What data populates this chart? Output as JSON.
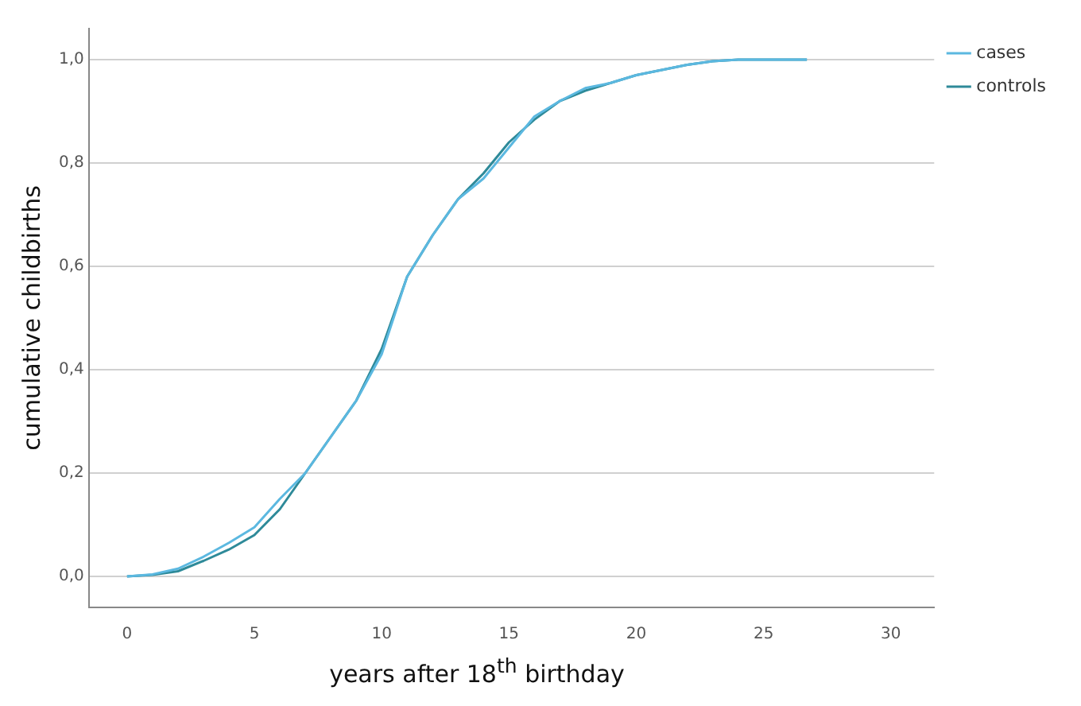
{
  "chart_data": {
    "type": "line",
    "xlabel": "years after 18$^{th}$ birthday",
    "ylabel": "cumulative childbirths",
    "xlim": [
      -1.5,
      31.7
    ],
    "ylim": [
      -0.06,
      1.06
    ],
    "xticks": [
      0,
      5,
      10,
      15,
      20,
      25,
      30
    ],
    "yticks": [
      {
        "value": 0,
        "label": "0,0"
      },
      {
        "value": 0.2,
        "label": "0,2"
      },
      {
        "value": 0.4,
        "label": "0,4"
      },
      {
        "value": 0.6,
        "label": "0,6"
      },
      {
        "value": 0.8,
        "label": "0,8"
      },
      {
        "value": 1,
        "label": "1,0"
      }
    ],
    "grid": "y",
    "legend": "top right",
    "series": [
      {
        "name": "cases",
        "color": "#5bb8e0",
        "x": [
          0,
          1,
          2,
          3,
          4,
          5,
          6,
          7,
          8,
          9,
          10,
          11,
          12,
          13,
          14,
          15,
          16,
          17,
          18,
          19,
          20,
          21,
          22,
          23,
          24,
          26.7
        ],
        "values": [
          0,
          0.004,
          0.015,
          0.038,
          0.065,
          0.095,
          0.15,
          0.2,
          0.27,
          0.34,
          0.43,
          0.58,
          0.66,
          0.73,
          0.77,
          0.83,
          0.89,
          0.92,
          0.945,
          0.955,
          0.97,
          0.98,
          0.99,
          0.997,
          1,
          1
        ]
      },
      {
        "name": "controls",
        "color": "#2e8a99",
        "x": [
          0,
          1,
          2,
          3,
          4,
          5,
          6,
          7,
          8,
          9,
          10,
          11,
          12,
          13,
          14,
          15,
          16,
          17,
          18,
          19,
          20,
          21,
          22,
          23,
          24,
          26.7
        ],
        "values": [
          0,
          0.003,
          0.01,
          0.03,
          0.052,
          0.08,
          0.13,
          0.2,
          0.27,
          0.34,
          0.44,
          0.58,
          0.66,
          0.73,
          0.78,
          0.84,
          0.884,
          0.92,
          0.94,
          0.955,
          0.97,
          0.98,
          0.99,
          0.997,
          1,
          1
        ]
      }
    ]
  }
}
